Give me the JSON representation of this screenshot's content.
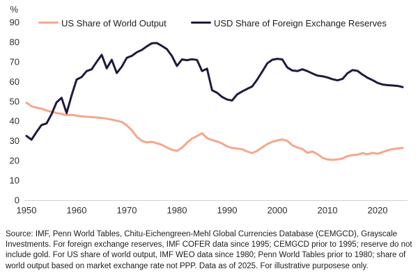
{
  "chart": {
    "percent_label": "%",
    "legend": [
      {
        "label": "US Share of World Output",
        "color": "#F4A78C"
      },
      {
        "label": "USD Share of Foreign Exchange Reserves",
        "color": "#1E1A3E"
      }
    ]
  },
  "chart_data": {
    "type": "line",
    "title": "",
    "xlabel": "",
    "ylabel": "%",
    "xlim": [
      1950,
      2025
    ],
    "ylim": [
      0,
      90
    ],
    "x_ticks": [
      1950,
      1960,
      1970,
      1980,
      1990,
      2000,
      2010,
      2020
    ],
    "y_ticks": [
      0,
      10,
      20,
      30,
      40,
      50,
      60,
      70,
      80,
      90
    ],
    "grid": false,
    "legend_position": "top",
    "x": [
      1950,
      1951,
      1952,
      1953,
      1954,
      1955,
      1956,
      1957,
      1958,
      1959,
      1960,
      1961,
      1962,
      1963,
      1964,
      1965,
      1966,
      1967,
      1968,
      1969,
      1970,
      1971,
      1972,
      1973,
      1974,
      1975,
      1976,
      1977,
      1978,
      1979,
      1980,
      1981,
      1982,
      1983,
      1984,
      1985,
      1986,
      1987,
      1988,
      1989,
      1990,
      1991,
      1992,
      1993,
      1994,
      1995,
      1996,
      1997,
      1998,
      1999,
      2000,
      2001,
      2002,
      2003,
      2004,
      2005,
      2006,
      2007,
      2008,
      2009,
      2010,
      2011,
      2012,
      2013,
      2014,
      2015,
      2016,
      2017,
      2018,
      2019,
      2020,
      2021,
      2022,
      2023,
      2024,
      2025
    ],
    "series": [
      {
        "name": "US Share of World Output",
        "color": "#F4A78C",
        "values": [
          49.3,
          47.5,
          46.8,
          46.3,
          45.4,
          44.7,
          44.1,
          43.6,
          43.0,
          43.2,
          42.7,
          42.4,
          42.2,
          42.0,
          41.8,
          41.6,
          41.2,
          40.7,
          40.2,
          39.6,
          37.8,
          35.4,
          32.0,
          30.0,
          29.2,
          29.5,
          28.8,
          28.0,
          26.6,
          25.5,
          24.9,
          26.5,
          29.0,
          31.2,
          32.4,
          33.9,
          31.4,
          30.4,
          29.7,
          28.7,
          27.2,
          26.4,
          26.1,
          25.8,
          24.6,
          23.8,
          25.0,
          26.7,
          28.4,
          29.5,
          30.2,
          30.7,
          30.0,
          27.8,
          26.6,
          25.9,
          23.9,
          24.6,
          23.3,
          21.4,
          20.6,
          20.4,
          20.6,
          21.1,
          22.3,
          22.8,
          23.0,
          23.8,
          23.2,
          23.9,
          23.5,
          24.3,
          25.2,
          25.8,
          26.2,
          26.4
        ]
      },
      {
        "name": "USD Share of Foreign Exchange Reserves",
        "color": "#1E1A3E",
        "values": [
          32.5,
          30.6,
          34.5,
          38.0,
          38.8,
          43.5,
          49.5,
          51.8,
          44.0,
          53.0,
          61.0,
          62.3,
          65.3,
          66.2,
          70.0,
          73.5,
          66.7,
          71.0,
          64.3,
          67.5,
          72.0,
          73.0,
          74.8,
          76.0,
          77.8,
          79.4,
          79.5,
          78.0,
          76.4,
          72.9,
          67.9,
          71.2,
          70.8,
          71.3,
          70.9,
          65.3,
          66.5,
          55.6,
          54.3,
          52.2,
          50.9,
          50.4,
          53.5,
          55.0,
          56.3,
          57.5,
          61.0,
          65.0,
          69.2,
          71.0,
          71.5,
          71.2,
          67.1,
          65.6,
          65.3,
          66.2,
          65.3,
          64.1,
          63.0,
          62.7,
          62.1,
          61.2,
          60.6,
          61.3,
          64.2,
          65.8,
          65.4,
          63.5,
          61.9,
          60.7,
          59.3,
          58.5,
          58.2,
          58.0,
          57.8,
          57.2
        ]
      }
    ]
  },
  "footer": {
    "text": "Source: IMF, Penn World Tables, Chitu-Eichengreen-Mehl Global Currencies Database (CEMGCD), Grayscale Investments. For foreign exchange reserves, IMF COFER data since 1995; CEMGCD prior to 1995; reserve do not include gold. For US share of world output, IMF WEO data since 1980; Penn World Tables prior to 1980; share of world output based on market exchange rate not PPP. Data as of 2025. For illustrative purposese only."
  }
}
